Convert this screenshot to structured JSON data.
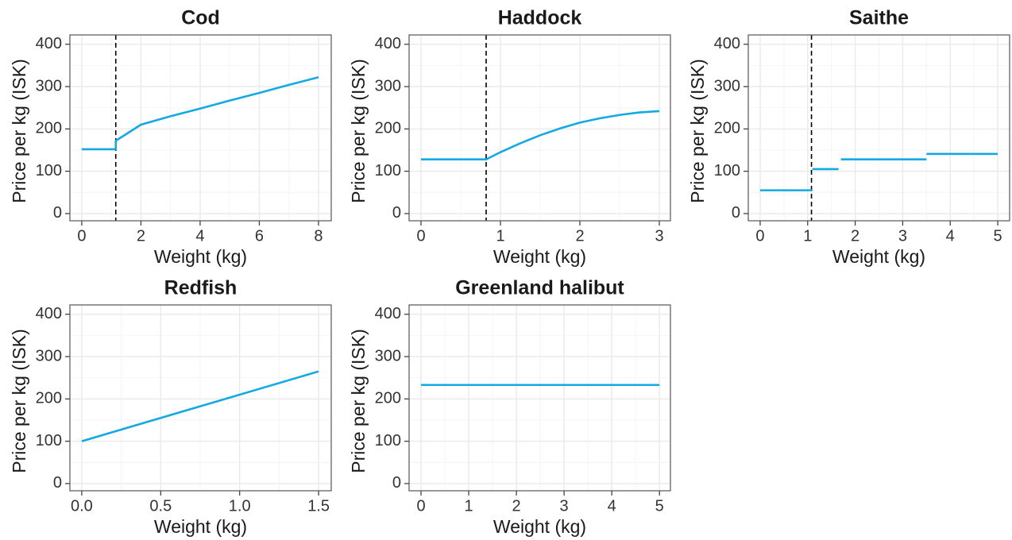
{
  "chart_data": [
    {
      "type": "line",
      "title": "Cod",
      "xlabel": "Weight (kg)",
      "ylabel": "Price per kg (ISK)",
      "x": [
        0,
        1.15,
        1.15,
        2,
        3,
        4,
        5,
        6,
        7,
        8
      ],
      "values": [
        152,
        152,
        172,
        210,
        230,
        248,
        267,
        285,
        304,
        322
      ],
      "color": "#13a9e2",
      "vline": 1.15,
      "xlim": [
        -0.4,
        8.43
      ],
      "ylim": [
        -17,
        422
      ],
      "xticks": [
        0,
        2,
        4,
        6,
        8
      ],
      "yticks": [
        0,
        100,
        200,
        300,
        400
      ],
      "grid": true
    },
    {
      "type": "line",
      "title": "Haddock",
      "xlabel": "Weight (kg)",
      "ylabel": "Price per kg (ISK)",
      "x": [
        0,
        0.82,
        1,
        1.25,
        1.5,
        1.75,
        2,
        2.25,
        2.5,
        2.75,
        3
      ],
      "values": [
        128,
        128,
        145,
        166,
        185,
        201,
        215,
        225,
        233,
        239,
        242
      ],
      "color": "#13a9e2",
      "vline": 0.82,
      "xlim": [
        -0.15,
        3.14
      ],
      "ylim": [
        -17,
        422
      ],
      "xticks": [
        0,
        1,
        2,
        3
      ],
      "yticks": [
        0,
        100,
        200,
        300,
        400
      ],
      "grid": true
    },
    {
      "type": "line",
      "title": "Saithe",
      "xlabel": "Weight (kg)",
      "ylabel": "Price per kg (ISK)",
      "x": [
        0,
        1.1,
        1.1,
        1.1,
        1.65,
        1.65,
        1.7,
        3.5,
        3.5,
        3.5,
        5
      ],
      "values": [
        55,
        55,
        null,
        105,
        105,
        null,
        128,
        128,
        null,
        141,
        141
      ],
      "color": "#13a9e2",
      "vline": 1.08,
      "xlim": [
        -0.25,
        5.25
      ],
      "ylim": [
        -17,
        422
      ],
      "xticks": [
        0,
        1,
        2,
        3,
        4,
        5
      ],
      "yticks": [
        0,
        100,
        200,
        300,
        400
      ],
      "grid": true
    },
    {
      "type": "line",
      "title": "Redfish",
      "xlabel": "Weight (kg)",
      "ylabel": "Price per kg (ISK)",
      "x": [
        0,
        1.5
      ],
      "values": [
        100,
        265
      ],
      "color": "#13a9e2",
      "xlim": [
        -0.075,
        1.58
      ],
      "ylim": [
        -17,
        422
      ],
      "xticks": [
        {
          "value": 0,
          "label": "0.0"
        },
        {
          "value": 0.5,
          "label": "0.5"
        },
        {
          "value": 1,
          "label": "1.0"
        },
        {
          "value": 1.5,
          "label": "1.5"
        }
      ],
      "yticks": [
        0,
        100,
        200,
        300,
        400
      ],
      "grid": true
    },
    {
      "type": "line",
      "title": "Greenland halibut",
      "xlabel": "Weight (kg)",
      "ylabel": "Price per kg (ISK)",
      "x": [
        0,
        5
      ],
      "values": [
        233,
        233
      ],
      "color": "#13a9e2",
      "xlim": [
        -0.25,
        5.23
      ],
      "ylim": [
        -17,
        422
      ],
      "xticks": [
        0,
        1,
        2,
        3,
        4,
        5
      ],
      "yticks": [
        0,
        100,
        200,
        300,
        400
      ],
      "grid": true
    }
  ]
}
